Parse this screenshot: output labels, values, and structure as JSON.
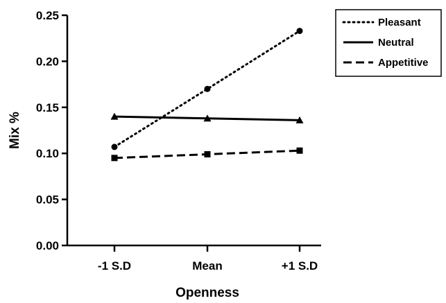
{
  "chart_data": {
    "type": "line",
    "title": "",
    "xlabel": "Openness",
    "ylabel": "Mix  %",
    "categories": [
      "-1 S.D",
      "Mean",
      "+1 S.D"
    ],
    "ylim": [
      0,
      0.25
    ],
    "yticks": [
      "0.00",
      "0.05",
      "0.10",
      "0.15",
      "0.20",
      "0.25"
    ],
    "grid": false,
    "legend_position": "top-right",
    "series": [
      {
        "name": "Pleasant",
        "values": [
          0.107,
          0.17,
          0.233
        ],
        "line_style": "dotted",
        "marker": "circle"
      },
      {
        "name": "Neutral",
        "values": [
          0.14,
          0.138,
          0.136
        ],
        "line_style": "solid",
        "marker": "triangle"
      },
      {
        "name": "Appetitive",
        "values": [
          0.095,
          0.099,
          0.103
        ],
        "line_style": "dashed",
        "marker": "square"
      }
    ]
  }
}
